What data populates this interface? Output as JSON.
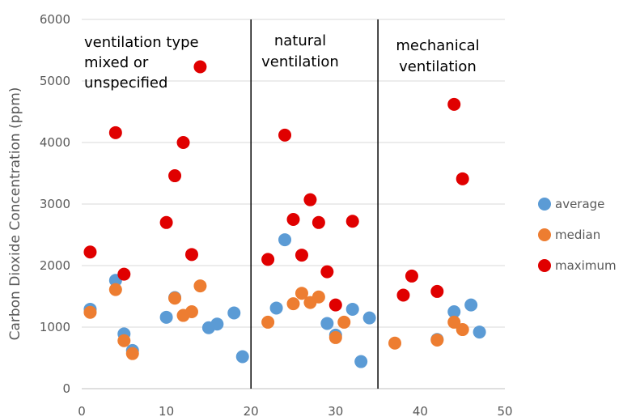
{
  "chart_data": {
    "type": "scatter",
    "title": "",
    "xlabel": "",
    "ylabel": "Carbon Dioxide Concentration (ppm)",
    "xlim": [
      0,
      50
    ],
    "ylim": [
      0,
      6000
    ],
    "xticks": [
      "0",
      "10",
      "20",
      "30",
      "40",
      "50"
    ],
    "yticks": [
      "0",
      "1000",
      "2000",
      "3000",
      "4000",
      "5000",
      "6000"
    ],
    "grid": "horizontal",
    "legend": "right",
    "dividers": [
      20,
      35
    ],
    "region_labels": [
      {
        "lines": [
          "ventilation type",
          "mixed or",
          "unspecified"
        ]
      },
      {
        "lines": [
          "natural",
          "ventilation"
        ]
      },
      {
        "lines": [
          "mechanical",
          "ventilation"
        ]
      }
    ],
    "series": [
      {
        "name": "average",
        "color": "#5b9bd5",
        "points": [
          [
            1,
            1290
          ],
          [
            4,
            1760
          ],
          [
            5,
            890
          ],
          [
            6,
            620
          ],
          [
            10,
            1160
          ],
          [
            11,
            1480
          ],
          [
            15,
            990
          ],
          [
            16,
            1050
          ],
          [
            18,
            1230
          ],
          [
            19,
            520
          ],
          [
            23,
            1310
          ],
          [
            24,
            2420
          ],
          [
            29,
            1060
          ],
          [
            30,
            870
          ],
          [
            32,
            1290
          ],
          [
            33,
            440
          ],
          [
            34,
            1150
          ],
          [
            42,
            800
          ],
          [
            44,
            1250
          ],
          [
            46,
            1360
          ],
          [
            47,
            920
          ]
        ]
      },
      {
        "name": "median",
        "color": "#ed7d31",
        "points": [
          [
            1,
            1240
          ],
          [
            4,
            1610
          ],
          [
            5,
            780
          ],
          [
            6,
            570
          ],
          [
            11,
            1470
          ],
          [
            12,
            1190
          ],
          [
            13,
            1250
          ],
          [
            14,
            1670
          ],
          [
            22,
            1080
          ],
          [
            25,
            1380
          ],
          [
            26,
            1550
          ],
          [
            27,
            1400
          ],
          [
            28,
            1490
          ],
          [
            30,
            830
          ],
          [
            31,
            1080
          ],
          [
            37,
            740
          ],
          [
            42,
            790
          ],
          [
            44,
            1080
          ],
          [
            45,
            960
          ]
        ]
      },
      {
        "name": "maximum",
        "color": "#e00000",
        "points": [
          [
            1,
            2220
          ],
          [
            4,
            4160
          ],
          [
            5,
            1860
          ],
          [
            10,
            2700
          ],
          [
            11,
            3460
          ],
          [
            12,
            4000
          ],
          [
            13,
            2180
          ],
          [
            14,
            5230
          ],
          [
            22,
            2100
          ],
          [
            24,
            4120
          ],
          [
            25,
            2750
          ],
          [
            26,
            2170
          ],
          [
            27,
            3070
          ],
          [
            28,
            2700
          ],
          [
            29,
            1900
          ],
          [
            30,
            1360
          ],
          [
            32,
            2720
          ],
          [
            38,
            1520
          ],
          [
            39,
            1830
          ],
          [
            42,
            1580
          ],
          [
            44,
            4620
          ],
          [
            45,
            3410
          ]
        ]
      }
    ]
  }
}
